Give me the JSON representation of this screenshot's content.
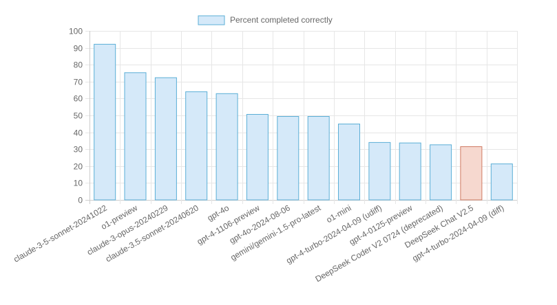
{
  "chart_data": {
    "type": "bar",
    "title": "",
    "xlabel": "",
    "ylabel": "",
    "legend": {
      "label": "Percent completed correctly",
      "position": "top"
    },
    "ylim": [
      0,
      100
    ],
    "yticks": [
      0,
      10,
      20,
      30,
      40,
      50,
      60,
      70,
      80,
      90,
      100
    ],
    "grid": true,
    "categories": [
      "claude-3-5-sonnet-20241022",
      "o1-preview",
      "claude-3-opus-20240229",
      "claude-3.5-sonnet-20240620",
      "gpt-4o",
      "gpt-4-1106-preview",
      "gpt-4o-2024-08-06",
      "gemini/gemini-1.5-pro-latest",
      "o1-mini",
      "gpt-4-turbo-2024-04-09 (udiff)",
      "gpt-4-0125-preview",
      "DeepSeek Coder V2 0724 (deprecated)",
      "DeepSeek Chat V2.5",
      "gpt-4-turbo-2024-04-09 (diff)"
    ],
    "values": [
      92.1,
      75.3,
      72.3,
      64.0,
      62.9,
      50.6,
      49.4,
      49.4,
      44.9,
      34.0,
      33.7,
      32.6,
      31.5,
      21.3
    ],
    "highlight_index": 12,
    "colors": {
      "bar_fill": "#d5e9f9",
      "bar_stroke": "#5aaed6",
      "highlight_fill": "#f6d8cf",
      "highlight_stroke": "#d07a62",
      "grid": "#e6e6e6",
      "axis": "#cccccc",
      "text": "#666666"
    }
  }
}
